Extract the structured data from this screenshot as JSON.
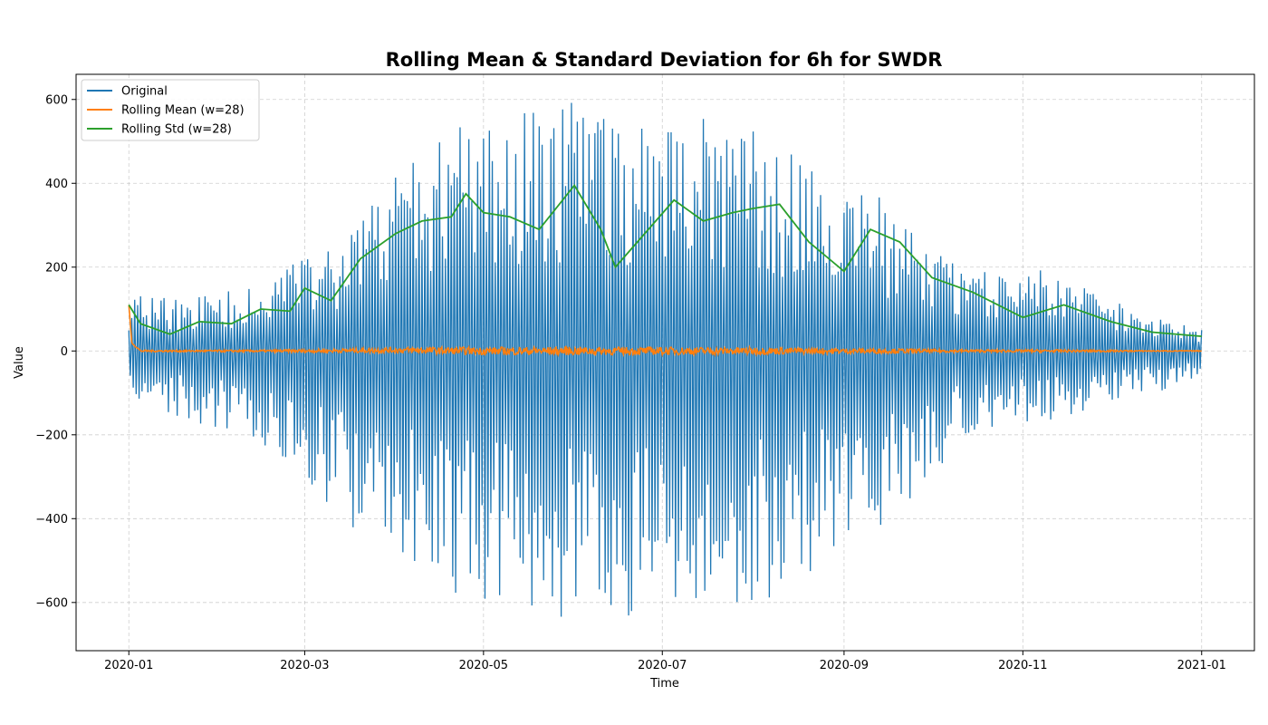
{
  "chart_data": {
    "type": "line",
    "title": "Rolling Mean & Standard Deviation for 6h for SWDR",
    "xlabel": "Time",
    "ylabel": "Value",
    "xlim": [
      "2019-12-14",
      "2021-01-19"
    ],
    "ylim": [
      -715,
      660
    ],
    "grid": true,
    "legend_position": "top-left",
    "x_ticks": [
      "2020-01",
      "2020-03",
      "2020-05",
      "2020-07",
      "2020-09",
      "2020-11",
      "2021-01"
    ],
    "y_ticks": [
      -600,
      -400,
      -200,
      0,
      200,
      400,
      600
    ],
    "y_tick_labels": [
      "−600",
      "−400",
      "−200",
      "0",
      "200",
      "400",
      "600"
    ],
    "series_data_note_free": true,
    "series": [
      {
        "name": "Original",
        "color": "#1f77b4",
        "envelope": {
          "x": [
            "2020-01-01",
            "2020-01-15",
            "2020-02-01",
            "2020-02-15",
            "2020-03-01",
            "2020-03-15",
            "2020-04-01",
            "2020-04-15",
            "2020-05-01",
            "2020-05-15",
            "2020-06-01",
            "2020-06-15",
            "2020-07-01",
            "2020-07-15",
            "2020-08-01",
            "2020-08-15",
            "2020-09-01",
            "2020-09-15",
            "2020-10-01",
            "2020-10-15",
            "2020-11-01",
            "2020-11-15",
            "2020-12-01",
            "2020-12-15",
            "2021-01-01"
          ],
          "max": [
            140,
            130,
            145,
            150,
            235,
            300,
            415,
            510,
            560,
            590,
            600,
            560,
            580,
            560,
            540,
            470,
            380,
            370,
            240,
            190,
            200,
            185,
            130,
            80,
            60
          ],
          "min": [
            -120,
            -160,
            -190,
            -220,
            -310,
            -420,
            -480,
            -570,
            -600,
            -640,
            -650,
            -630,
            -655,
            -620,
            -610,
            -560,
            -470,
            -420,
            -300,
            -200,
            -180,
            -170,
            -120,
            -100,
            -80
          ]
        }
      },
      {
        "name": "Rolling Mean (w=28)",
        "color": "#ff7f0e",
        "x": [
          "2020-01-01",
          "2020-01-02",
          "2020-01-05",
          "2020-02-01",
          "2020-03-01",
          "2020-04-01",
          "2020-05-01",
          "2020-06-01",
          "2020-07-01",
          "2020-08-01",
          "2020-09-01",
          "2020-10-01",
          "2020-11-01",
          "2020-12-01",
          "2021-01-01"
        ],
        "y": [
          110,
          20,
          0,
          0,
          0,
          2,
          0,
          0,
          0,
          0,
          0,
          0,
          0,
          0,
          0
        ]
      },
      {
        "name": "Rolling Std (w=28)",
        "color": "#2ca02c",
        "x": [
          "2020-01-01",
          "2020-01-05",
          "2020-01-15",
          "2020-01-25",
          "2020-02-05",
          "2020-02-15",
          "2020-02-25",
          "2020-03-01",
          "2020-03-10",
          "2020-03-20",
          "2020-04-01",
          "2020-04-10",
          "2020-04-20",
          "2020-04-25",
          "2020-05-01",
          "2020-05-10",
          "2020-05-20",
          "2020-06-01",
          "2020-06-10",
          "2020-06-15",
          "2020-06-25",
          "2020-07-05",
          "2020-07-15",
          "2020-07-25",
          "2020-08-01",
          "2020-08-10",
          "2020-08-20",
          "2020-09-01",
          "2020-09-10",
          "2020-09-20",
          "2020-10-01",
          "2020-10-15",
          "2020-11-01",
          "2020-11-15",
          "2020-12-01",
          "2020-12-15",
          "2021-01-01"
        ],
        "y": [
          110,
          65,
          40,
          70,
          65,
          100,
          95,
          150,
          120,
          220,
          280,
          310,
          320,
          375,
          330,
          320,
          290,
          395,
          290,
          200,
          280,
          360,
          310,
          330,
          340,
          350,
          260,
          190,
          290,
          260,
          175,
          140,
          80,
          110,
          70,
          45,
          35
        ]
      }
    ]
  }
}
